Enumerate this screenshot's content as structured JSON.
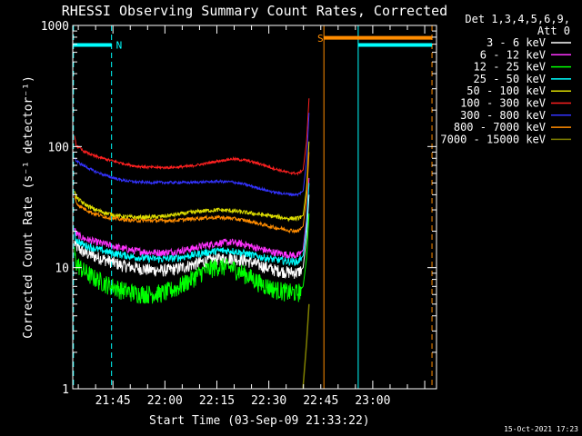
{
  "chart_data": {
    "type": "line",
    "title": "RHESSI Observing Summary Count Rates, Corrected",
    "xlabel": "Start Time (03-Sep-09 21:33:22)",
    "ylabel": "Corrected Count Rate (s⁻¹ detector⁻¹)",
    "x_unit": "minutes after 21:33:22",
    "xlim": [
      0,
      105
    ],
    "ylim": [
      1,
      1000
    ],
    "y_scale": "log",
    "x_ticks": [
      {
        "label": "21:45",
        "value": 11.6
      },
      {
        "label": "22:00",
        "value": 26.6
      },
      {
        "label": "22:15",
        "value": 41.6
      },
      {
        "label": "22:30",
        "value": 56.6
      },
      {
        "label": "22:45",
        "value": 71.6
      },
      {
        "label": "23:00",
        "value": 86.6
      }
    ],
    "y_ticks": [
      {
        "label": "1",
        "value": 1
      },
      {
        "label": "10",
        "value": 10
      },
      {
        "label": "100",
        "value": 100
      },
      {
        "label": "1000",
        "value": 1000
      }
    ],
    "legend": {
      "header": [
        "Det 1,3,4,5,6,9,",
        "Att 0"
      ],
      "placement": "right"
    },
    "x": [
      0.5,
      1,
      3,
      6,
      10,
      14,
      18,
      22,
      26,
      30,
      34,
      38,
      42,
      46,
      50,
      54,
      58,
      62,
      65,
      66.5,
      67.5,
      68.2
    ],
    "series": [
      {
        "name": "3 - 6 keV",
        "color": "#ffffff",
        "noise": 0.12,
        "values": [
          16,
          15,
          13.5,
          12.5,
          11.5,
          10.5,
          10,
          9.6,
          9.5,
          9.8,
          10.5,
          11.3,
          11.8,
          12,
          11.5,
          10.5,
          9.6,
          9.2,
          9.1,
          10,
          18,
          40
        ]
      },
      {
        "name": "6 - 12 keV",
        "color": "#ff33ff",
        "noise": 0.07,
        "values": [
          21,
          19,
          17.5,
          16.5,
          15.5,
          14.5,
          13.8,
          13.4,
          13.3,
          13.6,
          14.3,
          15.2,
          16,
          16.2,
          15.5,
          14.3,
          13.4,
          12.8,
          12.6,
          14,
          25,
          55
        ]
      },
      {
        "name": "12 - 25 keV",
        "color": "#00ff00",
        "noise": 0.18,
        "values": [
          13,
          11,
          9.5,
          8.3,
          7.3,
          6.6,
          6.2,
          6.1,
          6.2,
          6.8,
          8,
          9.5,
          10.3,
          10,
          8.8,
          7.5,
          6.7,
          6.3,
          6.2,
          7,
          12,
          28
        ]
      },
      {
        "name": "25 - 50 keV",
        "color": "#00ffff",
        "noise": 0.07,
        "values": [
          19,
          17,
          15.5,
          14.5,
          13.5,
          12.8,
          12.2,
          11.9,
          11.8,
          12,
          12.6,
          13.3,
          13.8,
          13.8,
          13.1,
          12.3,
          11.7,
          11.3,
          11.2,
          12.5,
          22,
          50
        ]
      },
      {
        "name": "50 - 100 keV",
        "color": "#dddd00",
        "noise": 0.04,
        "values": [
          44,
          38,
          34,
          30.5,
          28,
          26.5,
          26,
          26.1,
          26.5,
          27.5,
          28.5,
          29.5,
          30,
          29.5,
          28.5,
          27.5,
          26.5,
          25.5,
          25.5,
          27,
          45,
          110
        ]
      },
      {
        "name": "100 - 300 keV",
        "color": "#ff2020",
        "noise": 0.025,
        "values": [
          120,
          102,
          92,
          84,
          78,
          73,
          69,
          67.5,
          67,
          67.5,
          69,
          72,
          76,
          79,
          77,
          72,
          66,
          61,
          60,
          64,
          110,
          250
        ]
      },
      {
        "name": "300 - 800 keV",
        "color": "#3333ff",
        "noise": 0.025,
        "values": [
          82,
          76,
          70,
          63,
          57,
          53,
          51,
          50.5,
          50.5,
          50.5,
          50.5,
          51,
          51.5,
          51,
          48.5,
          45,
          42,
          40.5,
          40,
          43,
          75,
          190
        ]
      },
      {
        "name": "800 - 7000 keV",
        "color": "#ff8c00",
        "noise": 0.035,
        "values": [
          40,
          34,
          31,
          28,
          26,
          25,
          24.5,
          24.5,
          24.5,
          24.6,
          25.2,
          25.8,
          26,
          25.5,
          24.5,
          23,
          21.5,
          20.5,
          20,
          22,
          38,
          90
        ]
      },
      {
        "name": "7000 - 15000 keV",
        "color": "#808000",
        "noise": 0,
        "values": [
          null,
          null,
          null,
          null,
          null,
          null,
          null,
          null,
          null,
          null,
          null,
          null,
          null,
          null,
          null,
          null,
          null,
          null,
          null,
          1.05,
          2.4,
          5
        ]
      }
    ],
    "annotations": [
      {
        "label": "N",
        "color": "#00ffff",
        "x": 12.5,
        "y": 700
      },
      {
        "label": "S",
        "color": "#ff8c00",
        "x": 70.6,
        "y": 800
      }
    ],
    "vertical_markers": [
      {
        "x": 0.2,
        "color": "#00ffff",
        "style": "dashed"
      },
      {
        "x": 11.2,
        "color": "#00ffff",
        "style": "dashed"
      },
      {
        "x": 72.5,
        "color": "#ff8c00",
        "style": "solid"
      },
      {
        "x": 82.4,
        "color": "#00ffff",
        "style": "solid"
      },
      {
        "x": 103.7,
        "color": "#ff8c00",
        "style": "dashed"
      }
    ],
    "intervals": [
      {
        "x0": 0.2,
        "x1": 11.2,
        "y": 690,
        "color": "#00ffff"
      },
      {
        "x0": 72.5,
        "x1": 103.7,
        "y": 790,
        "color": "#ff8c00"
      },
      {
        "x0": 82.4,
        "x1": 103.7,
        "y": 690,
        "color": "#00ffff"
      }
    ]
  },
  "footer": {
    "timestamp": "15-Oct-2021 17:23"
  }
}
